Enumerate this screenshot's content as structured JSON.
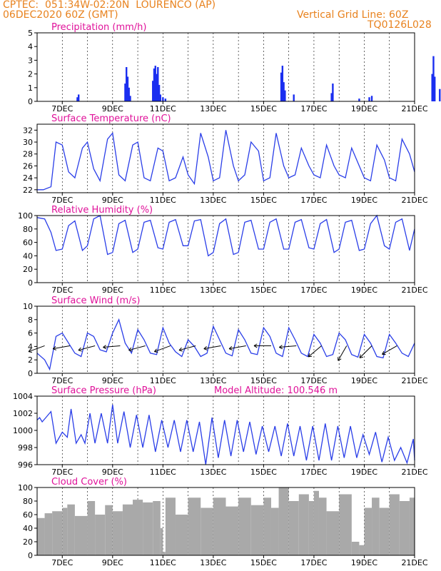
{
  "header": {
    "left1": "CPTEC:  051:34W-02:20N  LOURENCO (AP)",
    "left2": "06DEC2020 60Z (GMT)",
    "right1": "Vertical Grid Line: 60Z",
    "right2": "TQ0126L028"
  },
  "colors": {
    "line": "#2a3ee8",
    "bar": "#1a2ef0",
    "cloud": "#a9a9a9",
    "title": "#e0129a",
    "header": "#e8821e"
  },
  "x_ticks": [
    "7DEC",
    "9DEC",
    "11DEC",
    "13DEC",
    "15DEC",
    "17DEC",
    "19DEC",
    "21DEC"
  ],
  "chart_data": [
    {
      "type": "bar",
      "title": "Precipitation (mm/h)",
      "ylim": [
        0,
        5
      ],
      "yticks": [
        0,
        1,
        2,
        3,
        4,
        5
      ],
      "x": [
        1.6,
        1.65,
        3.5,
        3.55,
        3.6,
        3.65,
        3.7,
        4.6,
        4.65,
        4.7,
        4.75,
        4.8,
        4.85,
        4.9,
        5.0,
        5.1,
        9.7,
        9.75,
        9.8,
        9.85,
        10.2,
        11.7,
        11.75,
        12.8,
        13.2,
        13.3,
        15.7,
        15.75,
        15.8,
        16.0,
        16.2
      ],
      "values": [
        0.3,
        0.5,
        1.3,
        2.5,
        1.8,
        1.0,
        0.4,
        1.5,
        2.4,
        2.6,
        2.0,
        2.5,
        1.2,
        0.5,
        0.3,
        0.2,
        2.1,
        2.6,
        1.4,
        0.8,
        0.5,
        0.6,
        1.3,
        0.2,
        0.3,
        0.4,
        2.0,
        3.3,
        1.8,
        0.9,
        0.7
      ]
    },
    {
      "type": "line",
      "title": "Surface Temperature (nC)",
      "ylim": [
        21.5,
        33
      ],
      "yticks": [
        22,
        24,
        26,
        28,
        30,
        32
      ],
      "x": [
        0,
        0.25,
        0.55,
        0.75,
        1,
        1.25,
        1.5,
        1.8,
        2,
        2.25,
        2.5,
        2.8,
        3,
        3.25,
        3.5,
        3.8,
        4,
        4.25,
        4.5,
        4.8,
        5,
        5.25,
        5.5,
        5.8,
        6,
        6.25,
        6.5,
        6.8,
        7,
        7.25,
        7.5,
        7.8,
        8,
        8.25,
        8.5,
        8.8,
        9,
        9.25,
        9.5,
        9.8,
        10,
        10.25,
        10.5,
        10.8,
        11,
        11.25,
        11.5,
        11.8,
        12,
        12.25,
        12.5,
        12.8,
        13,
        13.25,
        13.5,
        13.8,
        14,
        14.25,
        14.5,
        14.8,
        15
      ],
      "values": [
        22,
        22,
        22.5,
        30,
        29.5,
        25,
        24,
        29,
        30,
        25.5,
        23.5,
        30.5,
        31.5,
        24.5,
        23.5,
        29.5,
        30,
        24,
        23.5,
        29,
        28.5,
        23.5,
        24,
        27.5,
        24.5,
        23,
        31.5,
        27.5,
        23.5,
        24,
        32,
        26,
        23.5,
        24.5,
        30,
        28.5,
        23.5,
        24,
        31.5,
        26,
        24,
        24.5,
        29,
        26,
        24.5,
        24,
        29.5,
        26,
        24.5,
        24,
        29,
        26,
        24,
        23.5,
        29.5,
        27,
        24,
        23.5,
        30.5,
        28,
        25
      ]
    },
    {
      "type": "line",
      "title": "Relative Humidity (%)",
      "ylim": [
        0,
        100
      ],
      "yticks": [
        0,
        20,
        40,
        60,
        80,
        100
      ],
      "x": [
        0,
        0.3,
        0.55,
        0.75,
        1,
        1.25,
        1.5,
        1.8,
        2,
        2.25,
        2.5,
        2.8,
        3,
        3.25,
        3.5,
        3.8,
        4,
        4.25,
        4.5,
        4.8,
        5,
        5.25,
        5.5,
        5.8,
        6,
        6.25,
        6.5,
        6.8,
        7,
        7.25,
        7.5,
        7.8,
        8,
        8.25,
        8.5,
        8.8,
        9,
        9.25,
        9.5,
        9.8,
        10,
        10.25,
        10.5,
        10.8,
        11,
        11.25,
        11.5,
        11.8,
        12,
        12.25,
        12.5,
        12.8,
        13,
        13.25,
        13.5,
        13.8,
        14,
        14.25,
        14.5,
        14.8,
        15
      ],
      "values": [
        97,
        95,
        75,
        48,
        50,
        85,
        92,
        48,
        55,
        95,
        100,
        42,
        45,
        88,
        93,
        45,
        50,
        90,
        93,
        52,
        50,
        90,
        94,
        55,
        55,
        92,
        94,
        40,
        45,
        88,
        95,
        42,
        45,
        90,
        93,
        50,
        50,
        90,
        95,
        50,
        50,
        90,
        94,
        52,
        50,
        88,
        94,
        45,
        50,
        90,
        93,
        48,
        50,
        88,
        100,
        55,
        50,
        90,
        95,
        48,
        80
      ]
    },
    {
      "type": "line",
      "title": "Surface Wind (m/s)",
      "ylim": [
        0,
        10
      ],
      "yticks": [
        0,
        2,
        4,
        6,
        8,
        10
      ],
      "x": [
        0,
        0.3,
        0.5,
        0.75,
        1,
        1.25,
        1.5,
        1.75,
        2,
        2.25,
        2.5,
        2.75,
        3,
        3.25,
        3.5,
        3.75,
        4,
        4.25,
        4.5,
        4.75,
        5,
        5.25,
        5.5,
        5.75,
        6,
        6.25,
        6.5,
        6.75,
        7,
        7.25,
        7.5,
        7.75,
        8,
        8.25,
        8.5,
        8.75,
        9,
        9.25,
        9.5,
        9.75,
        10,
        10.25,
        10.5,
        10.75,
        11,
        11.25,
        11.5,
        11.75,
        12,
        12.25,
        12.5,
        12.75,
        13,
        13.25,
        13.5,
        13.75,
        14,
        14.25,
        14.5,
        14.75,
        15
      ],
      "values": [
        3,
        2,
        0.6,
        5.5,
        6,
        4.5,
        3,
        2.5,
        6,
        5.5,
        3.5,
        3.2,
        6,
        8,
        4.5,
        3,
        6.5,
        5,
        3,
        2.8,
        6.8,
        4.5,
        3.2,
        2.5,
        5,
        4,
        2.5,
        3,
        7,
        5,
        3,
        2.6,
        6.5,
        5,
        3,
        2.8,
        6.8,
        5.5,
        3,
        2.5,
        6.8,
        5,
        3,
        2.5,
        5.8,
        4.5,
        2.5,
        2.8,
        6,
        5,
        2.8,
        2.4,
        5.8,
        4.5,
        2.5,
        2.3,
        5.8,
        4.5,
        3,
        2.5,
        4.5
      ],
      "arrow_x": [
        0.3,
        1.3,
        2.3,
        3.3,
        4.3,
        5.3,
        6.3,
        7.3,
        8.3,
        9.3,
        10.3,
        11.3,
        12.3,
        13.3,
        14.3
      ],
      "arrow_dir": [
        200,
        190,
        195,
        185,
        195,
        200,
        195,
        190,
        190,
        180,
        185,
        220,
        240,
        225,
        210
      ]
    },
    {
      "type": "line",
      "title": "Surface Pressure (hPa)",
      "subtitle": "Model Altitude: 100.546 m",
      "ylim": [
        996,
        1004
      ],
      "yticks": [
        996,
        998,
        1000,
        1002,
        1004
      ],
      "x": [
        0,
        0.1,
        0.2,
        0.35,
        0.55,
        0.75,
        1,
        1.2,
        1.35,
        1.55,
        1.75,
        1.9,
        2.1,
        2.3,
        2.55,
        2.8,
        3,
        3.2,
        3.45,
        3.7,
        3.95,
        4.2,
        4.45,
        4.7,
        4.95,
        5.2,
        5.45,
        5.7,
        5.95,
        6.2,
        6.45,
        6.7,
        6.95,
        7.2,
        7.45,
        7.7,
        7.95,
        8.2,
        8.45,
        8.7,
        8.95,
        9.2,
        9.45,
        9.7,
        9.95,
        10.2,
        10.45,
        10.7,
        10.95,
        11.2,
        11.45,
        11.7,
        11.95,
        12.2,
        12.45,
        12.7,
        12.95,
        13.2,
        13.45,
        13.7,
        13.95,
        14.2,
        14.45,
        14.7,
        14.95,
        15
      ],
      "values": [
        1001.2,
        1001.5,
        1001,
        1001.5,
        1002.2,
        998.5,
        999.8,
        999.2,
        1002.5,
        998.5,
        999.5,
        998.5,
        1002,
        998.5,
        1002,
        998.5,
        1003,
        998.5,
        1002.2,
        998,
        1001.8,
        998,
        1001.8,
        997.5,
        1001.2,
        998,
        1001.2,
        997.5,
        1001.2,
        997.5,
        1001,
        996,
        1001.5,
        996.8,
        1001.2,
        997,
        1001.2,
        997.5,
        1001,
        997.2,
        1000.5,
        997.5,
        1000.5,
        997,
        1000.8,
        997,
        1000.5,
        996.5,
        1000.5,
        996.5,
        1000.8,
        996.5,
        1000.5,
        996.8,
        1000.5,
        996.8,
        999.5,
        997.2,
        999.8,
        996.3,
        999.2,
        996.5,
        998,
        996.2,
        999,
        996.5
      ]
    },
    {
      "type": "area",
      "title": "Cloud Cover (%)",
      "ylim": [
        0,
        100
      ],
      "yticks": [
        0,
        20,
        40,
        60,
        80,
        100
      ],
      "x": [
        0,
        0.3,
        0.6,
        1,
        1.2,
        1.5,
        2,
        2.3,
        2.7,
        3,
        3.4,
        3.8,
        4.2,
        4.6,
        4.9,
        5,
        5.1,
        5.5,
        6,
        6.5,
        7,
        7.5,
        8,
        8.5,
        9,
        9.3,
        9.6,
        10,
        10.4,
        10.8,
        11,
        11.2,
        11.5,
        12,
        12.5,
        12.8,
        13,
        13.3,
        13.6,
        14,
        14.4,
        14.8,
        15
      ],
      "values": [
        55,
        62,
        65,
        70,
        75,
        58,
        80,
        60,
        74,
        65,
        75,
        82,
        78,
        80,
        40,
        5,
        85,
        60,
        85,
        70,
        85,
        72,
        85,
        74,
        85,
        70,
        100,
        80,
        90,
        80,
        95,
        85,
        65,
        90,
        20,
        15,
        70,
        85,
        70,
        90,
        80,
        85,
        95
      ]
    }
  ]
}
